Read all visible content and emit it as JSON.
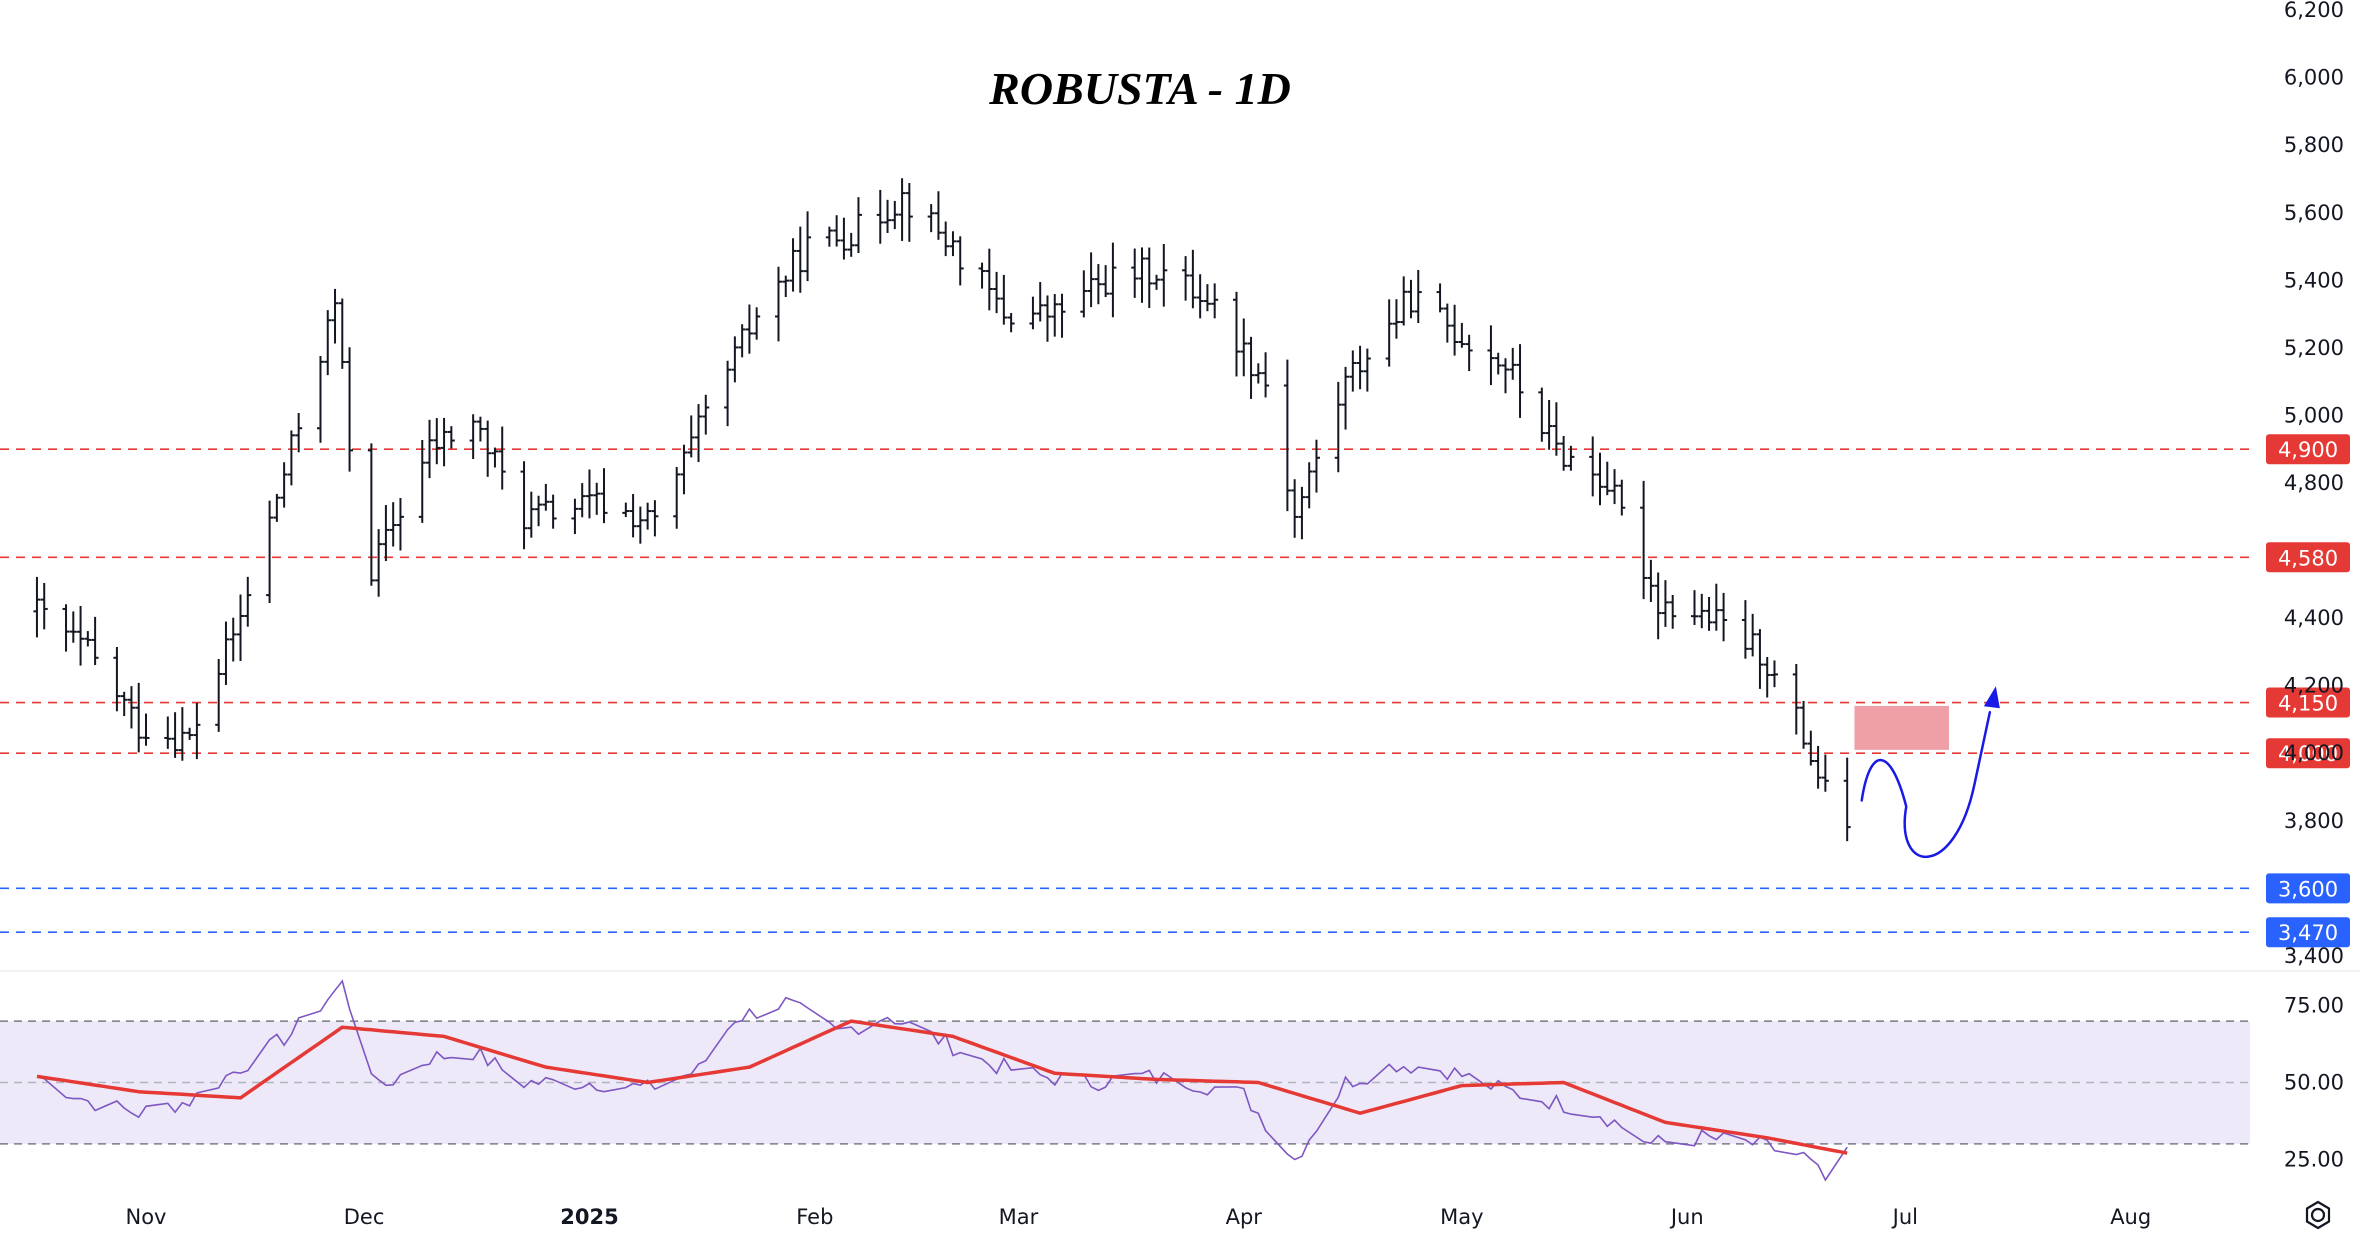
{
  "chart_data": {
    "type": "ohlc",
    "title": "ROBUSTA - 1D",
    "price_axis": {
      "range": [
        3370,
        6230
      ],
      "ticks": [
        3400,
        3800,
        4000,
        4200,
        4400,
        4800,
        5000,
        5200,
        5400,
        5600,
        5800,
        6000,
        6200
      ],
      "tick_labels": [
        "3,400",
        "3,800",
        "4,000",
        "4,200",
        "4,400",
        "4,800",
        "5,000",
        "5,200",
        "5,400",
        "5,600",
        "5,800",
        "6,000",
        "6,200"
      ]
    },
    "time_axis": {
      "labels": [
        "Nov",
        "Dec",
        "2025",
        "Feb",
        "Mar",
        "Apr",
        "May",
        "Jun",
        "Jul",
        "Aug"
      ]
    },
    "levels": [
      {
        "value": 4900,
        "label": "4,900",
        "color": "#e53935"
      },
      {
        "value": 4580,
        "label": "4,580",
        "color": "#e53935"
      },
      {
        "value": 4150,
        "label": "4,150",
        "color": "#e53935"
      },
      {
        "value": 4000,
        "label": "4,000",
        "color": "#e53935"
      },
      {
        "value": 3600,
        "label": "3,600",
        "color": "#2962ff"
      },
      {
        "value": 3470,
        "label": "3,470",
        "color": "#2962ff"
      }
    ],
    "resistance_zone": {
      "from": 4010,
      "to": 4140,
      "color": "#ec8f97"
    },
    "projection_color": "#1a1ae6",
    "price_path": [
      [
        "2024-10-17",
        4420
      ],
      [
        "2024-10-24",
        4300
      ],
      [
        "2024-10-31",
        4080
      ],
      [
        "2024-11-07",
        4040
      ],
      [
        "2024-11-14",
        4400
      ],
      [
        "2024-11-21",
        4900
      ],
      [
        "2024-11-27",
        5330
      ],
      [
        "2024-12-01",
        4500
      ],
      [
        "2024-12-10",
        4900
      ],
      [
        "2024-12-16",
        4980
      ],
      [
        "2024-12-23",
        4700
      ],
      [
        "2025-01-02",
        4740
      ],
      [
        "2025-01-10",
        4680
      ],
      [
        "2025-01-17",
        5000
      ],
      [
        "2025-01-24",
        5300
      ],
      [
        "2025-01-31",
        5500
      ],
      [
        "2025-02-07",
        5550
      ],
      [
        "2025-02-13",
        5650
      ],
      [
        "2025-02-20",
        5500
      ],
      [
        "2025-02-27",
        5300
      ],
      [
        "2025-03-06",
        5300
      ],
      [
        "2025-03-13",
        5400
      ],
      [
        "2025-03-20",
        5430
      ],
      [
        "2025-03-27",
        5350
      ],
      [
        "2025-04-04",
        5100
      ],
      [
        "2025-04-08",
        4700
      ],
      [
        "2025-04-15",
        5100
      ],
      [
        "2025-04-24",
        5350
      ],
      [
        "2025-04-30",
        5250
      ],
      [
        "2025-05-07",
        5150
      ],
      [
        "2025-05-14",
        4900
      ],
      [
        "2025-05-21",
        4800
      ],
      [
        "2025-05-28",
        4450
      ],
      [
        "2025-06-04",
        4400
      ],
      [
        "2025-06-11",
        4300
      ],
      [
        "2025-06-16",
        4100
      ],
      [
        "2025-06-20",
        3880
      ],
      [
        "2025-06-23",
        3800
      ]
    ],
    "indicator": {
      "type": "rsi",
      "range": [
        15,
        85
      ],
      "ticks": [
        25,
        50,
        75
      ],
      "tick_labels": [
        "25.00",
        "50.00",
        "75.00"
      ],
      "band": [
        30,
        70
      ],
      "line_color": "#7e57c2",
      "ma_color": "#e53935",
      "rsi": [
        [
          "2024-10-17",
          52
        ],
        [
          "2024-10-24",
          44
        ],
        [
          "2024-10-31",
          40
        ],
        [
          "2024-11-07",
          44
        ],
        [
          "2024-11-14",
          55
        ],
        [
          "2024-11-21",
          66
        ],
        [
          "2024-11-28",
          82
        ],
        [
          "2024-12-03",
          48
        ],
        [
          "2024-12-10",
          58
        ],
        [
          "2024-12-16",
          60
        ],
        [
          "2024-12-23",
          50
        ],
        [
          "2025-01-02",
          50
        ],
        [
          "2025-01-09",
          48
        ],
        [
          "2025-01-16",
          54
        ],
        [
          "2025-01-21",
          71
        ],
        [
          "2025-01-28",
          76
        ],
        [
          "2025-02-04",
          66
        ],
        [
          "2025-02-11",
          72
        ],
        [
          "2025-02-18",
          64
        ],
        [
          "2025-02-25",
          56
        ],
        [
          "2025-03-04",
          52
        ],
        [
          "2025-03-11",
          50
        ],
        [
          "2025-03-18",
          52
        ],
        [
          "2025-03-25",
          50
        ],
        [
          "2025-04-01",
          46
        ],
        [
          "2025-04-08",
          25
        ],
        [
          "2025-04-15",
          50
        ],
        [
          "2025-04-22",
          56
        ],
        [
          "2025-04-29",
          54
        ],
        [
          "2025-05-06",
          48
        ],
        [
          "2025-05-13",
          44
        ],
        [
          "2025-05-20",
          40
        ],
        [
          "2025-05-27",
          30
        ],
        [
          "2025-06-03",
          32
        ],
        [
          "2025-06-10",
          30
        ],
        [
          "2025-06-17",
          26
        ],
        [
          "2025-06-20",
          18
        ],
        [
          "2025-06-23",
          26
        ]
      ],
      "ma": [
        [
          "2024-10-17",
          52
        ],
        [
          "2024-10-31",
          47
        ],
        [
          "2024-11-14",
          45
        ],
        [
          "2024-11-28",
          68
        ],
        [
          "2024-12-12",
          65
        ],
        [
          "2024-12-26",
          55
        ],
        [
          "2025-01-09",
          50
        ],
        [
          "2025-01-23",
          55
        ],
        [
          "2025-02-06",
          70
        ],
        [
          "2025-02-20",
          65
        ],
        [
          "2025-03-06",
          53
        ],
        [
          "2025-03-20",
          51
        ],
        [
          "2025-04-03",
          50
        ],
        [
          "2025-04-17",
          40
        ],
        [
          "2025-05-01",
          49
        ],
        [
          "2025-05-15",
          50
        ],
        [
          "2025-05-29",
          37
        ],
        [
          "2025-06-12",
          32
        ],
        [
          "2025-06-23",
          27
        ]
      ]
    }
  },
  "ui": {
    "settings_icon": "gear-icon"
  }
}
